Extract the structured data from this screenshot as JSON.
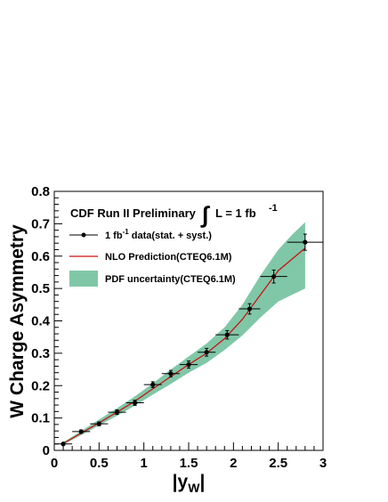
{
  "chart_data": {
    "type": "scatter",
    "title": "",
    "header": {
      "experiment": "CDF Run II Preliminary",
      "lumi_symbol": "∫",
      "lumi_text": "L = 1 fb",
      "lumi_sup": "-1"
    },
    "xlabel": {
      "main": "|y",
      "sub": "W",
      "close": "|"
    },
    "ylabel": "W Charge Asymmetry",
    "xlim": [
      0,
      3
    ],
    "ylim": [
      0,
      0.8
    ],
    "x_ticks": [
      "0",
      "0.5",
      "1",
      "1.5",
      "2",
      "2.5",
      "3"
    ],
    "y_ticks": [
      "0",
      "0.1",
      "0.2",
      "0.3",
      "0.4",
      "0.5",
      "0.6",
      "0.7",
      "0.8"
    ],
    "legend": [
      {
        "key": "data",
        "prefix": "1 fb",
        "sup": "-1",
        "suffix": " data(stat. + syst.)"
      },
      {
        "key": "nlo",
        "text": "NLO Prediction(CTEQ6.1M)"
      },
      {
        "key": "pdf",
        "text": "PDF uncertainty(CTEQ6.1M)"
      }
    ],
    "colors": {
      "nlo": "#cc1111",
      "band": "#80c7a8",
      "data": "#000000"
    },
    "series": [
      {
        "key": "data",
        "points": [
          {
            "x": 0.1,
            "y": 0.02,
            "xerr": 0.1,
            "yerr": 0.004
          },
          {
            "x": 0.3,
            "y": 0.058,
            "xerr": 0.1,
            "yerr": 0.005
          },
          {
            "x": 0.5,
            "y": 0.082,
            "xerr": 0.1,
            "yerr": 0.006
          },
          {
            "x": 0.7,
            "y": 0.118,
            "xerr": 0.1,
            "yerr": 0.007
          },
          {
            "x": 0.9,
            "y": 0.147,
            "xerr": 0.1,
            "yerr": 0.008
          },
          {
            "x": 1.1,
            "y": 0.203,
            "xerr": 0.1,
            "yerr": 0.009
          },
          {
            "x": 1.3,
            "y": 0.237,
            "xerr": 0.1,
            "yerr": 0.01
          },
          {
            "x": 1.5,
            "y": 0.265,
            "xerr": 0.1,
            "yerr": 0.011
          },
          {
            "x": 1.7,
            "y": 0.303,
            "xerr": 0.1,
            "yerr": 0.012
          },
          {
            "x": 1.93,
            "y": 0.357,
            "xerr": 0.13,
            "yerr": 0.013
          },
          {
            "x": 2.18,
            "y": 0.437,
            "xerr": 0.12,
            "yerr": 0.016
          },
          {
            "x": 2.45,
            "y": 0.537,
            "xerr": 0.15,
            "yerr": 0.02
          },
          {
            "x": 2.8,
            "y": 0.643,
            "xerr": 0.2,
            "yerr": 0.025
          }
        ]
      },
      {
        "key": "nlo",
        "x": [
          0.08,
          0.3,
          0.5,
          0.7,
          0.9,
          1.1,
          1.3,
          1.5,
          1.7,
          1.9,
          2.1,
          2.3,
          2.5,
          2.65,
          2.8
        ],
        "y": [
          0.018,
          0.053,
          0.085,
          0.118,
          0.152,
          0.19,
          0.228,
          0.265,
          0.3,
          0.345,
          0.405,
          0.48,
          0.555,
          0.59,
          0.625
        ]
      },
      {
        "key": "pdf",
        "x": [
          0.08,
          0.3,
          0.5,
          0.7,
          0.9,
          1.1,
          1.3,
          1.5,
          1.7,
          1.9,
          2.1,
          2.3,
          2.5,
          2.65,
          2.8
        ],
        "upper": [
          0.022,
          0.06,
          0.095,
          0.13,
          0.167,
          0.207,
          0.25,
          0.29,
          0.33,
          0.38,
          0.45,
          0.54,
          0.62,
          0.665,
          0.705
        ],
        "lower": [
          0.015,
          0.047,
          0.077,
          0.107,
          0.138,
          0.172,
          0.205,
          0.24,
          0.27,
          0.31,
          0.355,
          0.41,
          0.46,
          0.48,
          0.5
        ]
      }
    ]
  }
}
